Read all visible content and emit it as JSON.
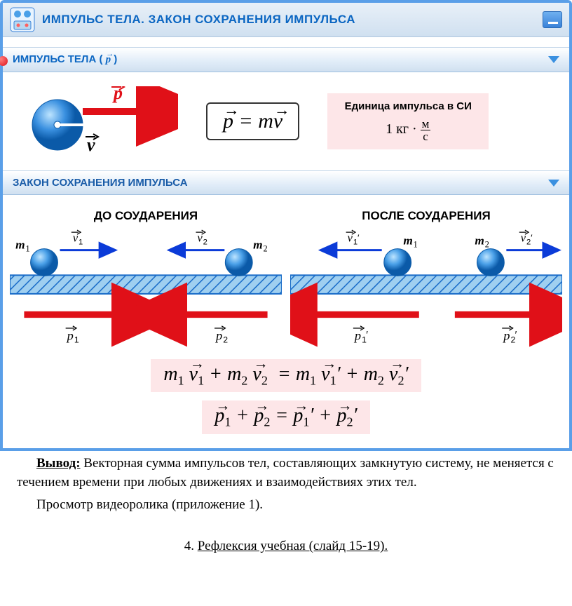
{
  "colors": {
    "frame": "#5a9fe8",
    "title_text": "#0b66c2",
    "header_gradient_top": "#ffffff",
    "header_gradient_bottom": "#d0e0f0",
    "red_arrow": "#e01018",
    "blue_arrow": "#0b3bd8",
    "ball_fill_light": "#7abef0",
    "ball_fill_dark": "#1a6cc8",
    "surface_fill": "#9fcff0",
    "hatch": "#1a6cc8",
    "highlight_bg": "#fde6e8"
  },
  "title_bar": {
    "title": "ИМПУЛЬС ТЕЛА. ЗАКОН СОХРАНЕНИЯ ИМПУЛЬСА"
  },
  "section1": {
    "label_prefix": "ИМПУЛЬС ТЕЛА ( ",
    "label_suffix": " )",
    "p_symbol": "p⃗",
    "v_symbol": "v⃗",
    "formula_html": "<span class='vec'>p</span>&nbsp;=&nbsp;m<span class='vec'>v</span>",
    "si_title": "Единица импульса в СИ",
    "si_value_html": "1 кг · <span class='frac'><span class='n'>м</span><span class='d'>с</span></span>"
  },
  "section2": {
    "label": "ЗАКОН СОХРАНЕНИЯ ИМПУЛЬСА"
  },
  "collision": {
    "before_title": "ДО СОУДАРЕНИЯ",
    "after_title": "ПОСЛЕ СОУДАРЕНИЯ",
    "before": {
      "m1": "m₁",
      "m2": "m₂",
      "v1": "v⃗₁",
      "v2": "v⃗₂",
      "p1": "p⃗₁",
      "p2": "p⃗₂",
      "v1_dir": "right",
      "v2_dir": "left",
      "p1_dir": "right",
      "p2_dir": "left"
    },
    "after": {
      "m1": "m₁",
      "m2": "m₂",
      "v1": "v⃗₁′",
      "v2": "v⃗₂′",
      "p1": "p⃗₁′",
      "p2": "p⃗₂′",
      "v1_dir": "left",
      "v2_dir": "right",
      "p1_dir": "left",
      "p2_dir": "right"
    }
  },
  "equations": {
    "eq1_html": "m<sub>1</sub> <span class='vec'>v</span><sub>1</sub> + m<sub>2</sub> <span class='vec'>v</span><sub>2</sub>&nbsp; = m<sub>1</sub> <span class='vec'>v</span><sub>1</sub>′ + m<sub>2</sub> <span class='vec'>v</span><sub>2</sub>′",
    "eq2_html": "<span class='vec'>p</span><sub>1</sub> + <span class='vec'>p</span><sub>2</sub> = <span class='vec'>p</span><sub>1</sub>′ + <span class='vec'>p</span><sub>2</sub>′"
  },
  "text": {
    "conclusion_label": "Вывод:",
    "conclusion_body": " Векторная сумма импульсов тел, составляющих замкнутую систему, не меняется с течением времени при любых движениях и взаимодействиях этих тел.",
    "video_line": "Просмотр видеоролика (приложение 1).",
    "reflex": "4. Рефлексия учебная (слайд 15-19)."
  }
}
